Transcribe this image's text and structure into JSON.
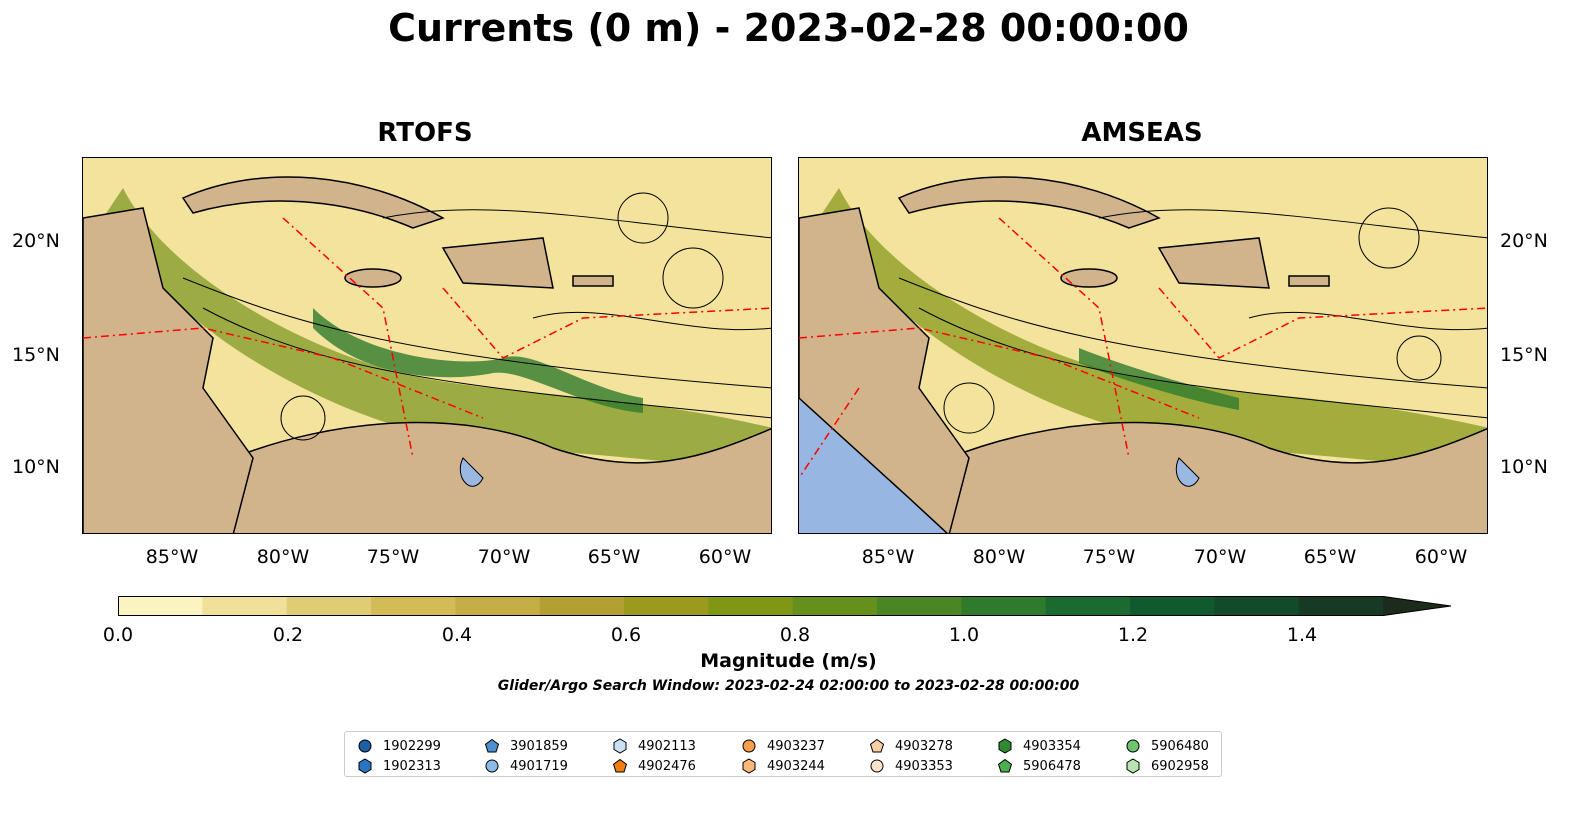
{
  "title": "Currents (0 m) - 2023-02-28 00:00:00",
  "panels": [
    {
      "title": "RTOFS"
    },
    {
      "title": "AMSEAS"
    }
  ],
  "axes": {
    "lat_ticks": [
      "20°N",
      "15°N",
      "10°N"
    ],
    "lon_ticks": [
      "85°W",
      "80°W",
      "75°W",
      "70°W",
      "65°W",
      "60°W"
    ]
  },
  "colorbar": {
    "label": "Magnitude (m/s)",
    "ticks": [
      "0.0",
      "0.2",
      "0.4",
      "0.6",
      "0.8",
      "1.0",
      "1.2",
      "1.4"
    ],
    "range": [
      0,
      1.5
    ],
    "extend": "max",
    "colors": [
      "#fbf4c0",
      "#efe09a",
      "#e1cc76",
      "#d3bb57",
      "#c4ae45",
      "#b2a132",
      "#9a9a1e",
      "#809615",
      "#65901b",
      "#4a8624",
      "#2f7a2d",
      "#1b6b31",
      "#115a2f",
      "#124a2a",
      "#163a24",
      "#1b2b1c"
    ]
  },
  "subtitle": "Glider/Argo Search Window: 2023-02-24 02:00:00 to 2023-02-28 00:00:00",
  "colors": {
    "land": "#d2b48c",
    "lake": "#9bb8e3",
    "stream": "#000000",
    "eez": "#ff0000",
    "border": "#000000"
  },
  "legend": [
    {
      "id": "1902299",
      "marker": "circle",
      "color": "#1f5fa3"
    },
    {
      "id": "1902313",
      "marker": "hexagon",
      "color": "#2a75c0"
    },
    {
      "id": "3901859",
      "marker": "pentagon",
      "color": "#4d8fd1"
    },
    {
      "id": "4901719",
      "marker": "circle",
      "color": "#8dbbe8"
    },
    {
      "id": "4902113",
      "marker": "hexagon",
      "color": "#c9e0f5"
    },
    {
      "id": "4902476",
      "marker": "pentagon",
      "color": "#f07e12"
    },
    {
      "id": "4903237",
      "marker": "circle",
      "color": "#f6a04c"
    },
    {
      "id": "4903244",
      "marker": "hexagon",
      "color": "#f9b97a"
    },
    {
      "id": "4903278",
      "marker": "pentagon",
      "color": "#fbcfa6"
    },
    {
      "id": "4903353",
      "marker": "circle",
      "color": "#fde3cc"
    },
    {
      "id": "4903354",
      "marker": "hexagon",
      "color": "#2e8b32"
    },
    {
      "id": "5906478",
      "marker": "pentagon",
      "color": "#4cae4c"
    },
    {
      "id": "5906480",
      "marker": "circle",
      "color": "#6cc46c"
    },
    {
      "id": "6902958",
      "marker": "hexagon",
      "color": "#b6e5b0"
    }
  ]
}
